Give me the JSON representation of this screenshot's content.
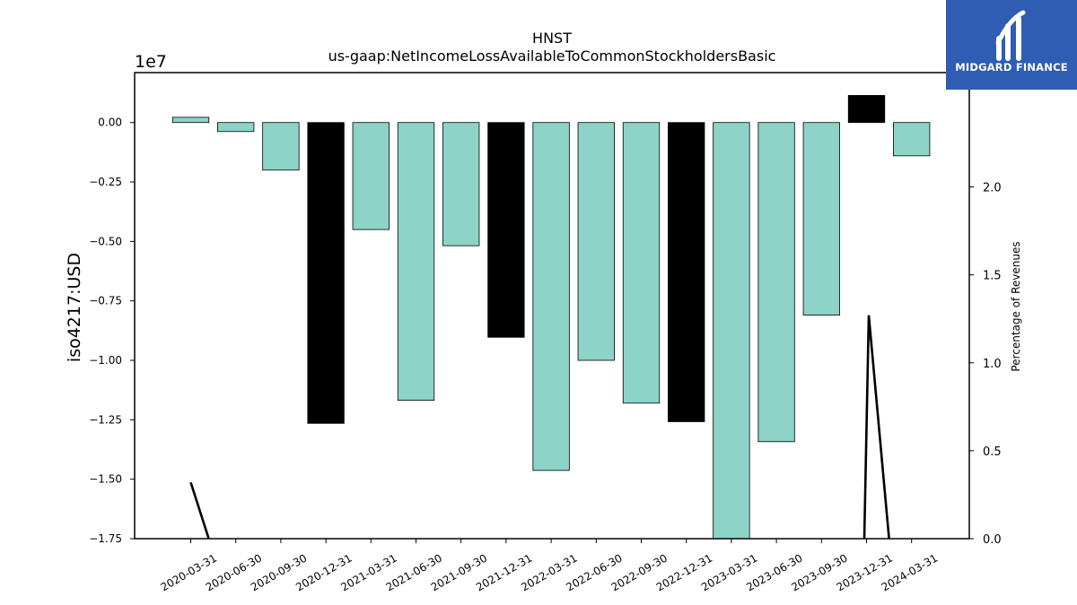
{
  "chart_data": {
    "type": "bar",
    "title": "HNST",
    "subtitle": "us-gaap:NetIncomeLossAvailableToCommonStockholdersBasic",
    "ylabel": "iso4217:USD",
    "y_offset_label": "1e7",
    "y2label": "Percentage of Revenues",
    "categories": [
      "2020-03-31",
      "2020-06-30",
      "2020-09-30",
      "2020-12-31",
      "2021-03-31",
      "2021-06-30",
      "2021-09-30",
      "2021-12-31",
      "2022-03-31",
      "2022-06-30",
      "2022-09-30",
      "2022-12-31",
      "2023-03-31",
      "2023-06-30",
      "2023-09-30",
      "2023-12-31",
      "2024-03-31"
    ],
    "values": [
      220000,
      -380000,
      -2000000,
      -12650000,
      -4500000,
      -11680000,
      -5180000,
      -9030000,
      -14630000,
      -10000000,
      -11800000,
      -12580000,
      -17900000,
      -13420000,
      -8100000,
      1140000,
      -1400000
    ],
    "bar_colors": [
      "#8dd3c7",
      "#8dd3c7",
      "#8dd3c7",
      "#000000",
      "#8dd3c7",
      "#8dd3c7",
      "#8dd3c7",
      "#000000",
      "#8dd3c7",
      "#8dd3c7",
      "#8dd3c7",
      "#000000",
      "#8dd3c7",
      "#8dd3c7",
      "#8dd3c7",
      "#000000",
      "#8dd3c7"
    ],
    "ylim": [
      -17500000,
      2100000
    ],
    "yticks": [
      0,
      -2500000,
      -5000000,
      -7500000,
      -10000000,
      -12500000,
      -15000000,
      -17500000
    ],
    "ytick_labels": [
      "0.00",
      "−0.25",
      "−0.50",
      "−0.75",
      "−1.00",
      "−1.25",
      "−1.50",
      "−1.75"
    ],
    "y2lim": [
      0,
      2.65
    ],
    "y2ticks": [
      0,
      0.5,
      1.0,
      1.5,
      2.0
    ],
    "y2tick_labels": [
      "0.0",
      "0.5",
      "1.0",
      "1.5",
      "2.0"
    ],
    "line_series": {
      "name": "",
      "color": "#000000",
      "segments": [
        [
          {
            "x": 0,
            "y": 0.32
          },
          {
            "x": 0.4,
            "y": 0
          }
        ],
        [
          {
            "x": 14.95,
            "y": 0
          },
          {
            "x": 15.05,
            "y": 1.27
          },
          {
            "x": 15.5,
            "y": 0
          }
        ]
      ]
    }
  },
  "logo": {
    "text": "MIDGARD FINANCE",
    "background": "#2f5db3"
  }
}
